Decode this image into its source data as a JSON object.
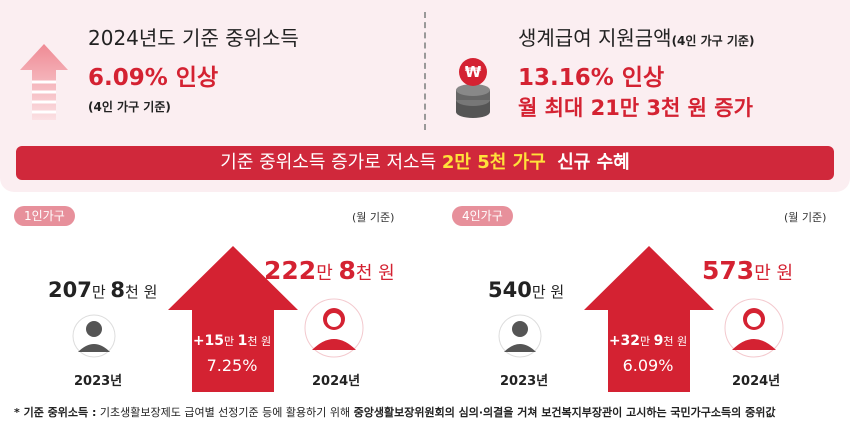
{
  "left_panel": {
    "title": "2024년도 기준 중위소득",
    "highlight": "6.09% 인상",
    "note": "(4인 가구 기준)"
  },
  "right_panel": {
    "title": "생계급여 지원금액",
    "title_note": "(4인 가구 기준)",
    "highlight1": "13.16% 인상",
    "highlight2": "월 최대 21만 3천 원 증가",
    "coin_icon_glyph": "₩"
  },
  "banner": {
    "pre": "기준 중위소득 증가로 저소득 ",
    "highlight": "2만 5천 가구",
    "post": "신규 수혜"
  },
  "one_person": {
    "tag": "1인가구",
    "unit_note": "(월 기준)",
    "year2023_amount": {
      "a": "207",
      "a_u": "만 ",
      "b": "8",
      "b_u": "천 원"
    },
    "year2024_amount": {
      "a": "222",
      "a_u": "만 ",
      "b": "8",
      "b_u": "천 원"
    },
    "increase": {
      "a": "+15",
      "a_u": "만 ",
      "b": "1",
      "b_u": "천 원"
    },
    "increase_pct": "7.25%",
    "year2023": "2023년",
    "year2024": "2024년"
  },
  "four_person": {
    "tag": "4인가구",
    "unit_note": "(월 기준)",
    "year2023_amount": {
      "a": "540",
      "a_u": "만 원"
    },
    "year2024_amount": {
      "a": "573",
      "a_u": "만 원"
    },
    "increase": {
      "a": "+32",
      "a_u": "만 ",
      "b": "9",
      "b_u": "천 원"
    },
    "increase_pct": "6.09%",
    "year2023": "2023년",
    "year2024": "2024년"
  },
  "footnote": {
    "label": "* 기준 중위소득 :",
    "text": " 기초생활보장제도 급여별 선정기준 등에 활용하기 위해 ",
    "bold": "중앙생활보장위원회의 심의·의결을 거쳐 보건복지부장관이 고시하는 국민가구소득의 중위값"
  },
  "colors": {
    "accent_red": "#d42232",
    "banner_red": "#d0283b",
    "highlight_yellow": "#ffe23a",
    "panel_bg": "#fbeef1",
    "tag_pink": "#e7909b",
    "person_gray": "#555555"
  },
  "icons": [
    "up-arrow-icon",
    "coin-stack-icon",
    "person-icon",
    "house-arrow-icon"
  ]
}
